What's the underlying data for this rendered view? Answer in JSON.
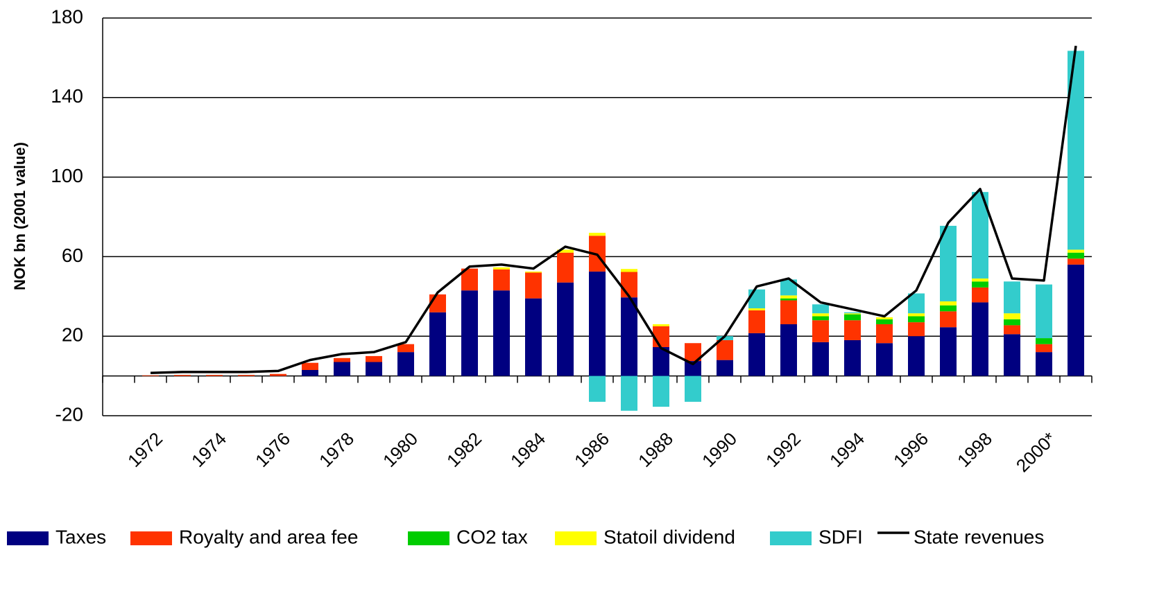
{
  "chart_data": {
    "type": "bar",
    "stacked": true,
    "y_label": "NOK bn (2001 value)",
    "categories": [
      null,
      "1972",
      null,
      "1974",
      null,
      "1976",
      null,
      "1978",
      null,
      "1980",
      null,
      "1982",
      null,
      "1984",
      null,
      "1986",
      null,
      "1988",
      null,
      "1990",
      null,
      "1992",
      null,
      "1994",
      null,
      "1996",
      null,
      "1998",
      null,
      "2000*",
      null
    ],
    "series": [
      {
        "name": "Taxes",
        "color": "#000080",
        "values": [
          null,
          0,
          0,
          0,
          0,
          0,
          3,
          7,
          7,
          12,
          32,
          43,
          43,
          39,
          47,
          52.5,
          39.5,
          14.5,
          7.5,
          8,
          21.5,
          26,
          17,
          18,
          16.5,
          20,
          24.5,
          37,
          21,
          12,
          56
        ]
      },
      {
        "name": "Royalty and area fee",
        "color": "#ff3300",
        "values": [
          null,
          0.3,
          0.5,
          0.5,
          0.5,
          1,
          3.6,
          2,
          3,
          4,
          9,
          11,
          10.6,
          13,
          15,
          18,
          12.8,
          10.5,
          9,
          10,
          11.5,
          12,
          11,
          10,
          9.5,
          7,
          8,
          7.5,
          4.5,
          4,
          3
        ]
      },
      {
        "name": "CO2 tax",
        "color": "#00cc00",
        "values": [
          null,
          0,
          0,
          0,
          0,
          0,
          0,
          0,
          0,
          0,
          0,
          0,
          0,
          0,
          0,
          0,
          0,
          0,
          0,
          0,
          0,
          1,
          2,
          3,
          2.5,
          3,
          3,
          3,
          3,
          3,
          3
        ]
      },
      {
        "name": "Statoil dividend",
        "color": "#ffff00",
        "values": [
          null,
          0,
          0,
          0,
          0,
          0,
          0,
          0,
          0,
          0,
          0,
          0,
          1,
          0.5,
          1.5,
          1.5,
          1.5,
          1,
          0,
          0,
          1,
          1.5,
          1.5,
          0.5,
          1,
          1.5,
          2,
          1.5,
          3,
          0,
          1.5
        ]
      },
      {
        "name": "SDFI",
        "color": "#33cccc",
        "values": [
          null,
          0,
          0,
          0,
          0,
          0,
          0,
          0,
          0,
          0,
          0,
          0,
          0,
          0,
          0,
          -13,
          -17.5,
          -15.5,
          -13,
          2,
          9.5,
          8,
          4.5,
          0.5,
          0,
          10,
          38,
          43.5,
          16,
          27,
          100
        ]
      },
      {
        "name": "State revenues",
        "color": "#000000",
        "type": "line",
        "values": [
          null,
          1.5,
          2,
          2,
          2,
          2.5,
          8,
          11,
          12,
          17,
          42,
          55,
          56,
          54,
          65,
          61,
          40,
          14,
          6,
          20,
          45,
          49,
          37,
          33.5,
          30,
          43,
          77,
          94,
          49,
          48,
          166
        ]
      }
    ],
    "ylim": [
      -20,
      180
    ],
    "yticks": [
      -20,
      20,
      60,
      100,
      140,
      180
    ],
    "grid": true
  }
}
